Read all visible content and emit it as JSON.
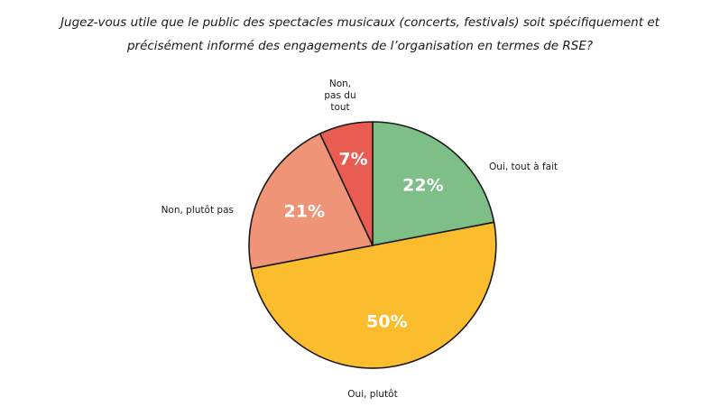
{
  "chart_data": {
    "type": "pie",
    "title_lines": [
      "Jugez-vous utile que le public des spectacles musicaux (concerts, festivals) soit spécifiquement et",
      "précisément informé des engagements de l’organisation en termes de RSE?"
    ],
    "slices": [
      {
        "label": "Oui, tout à fait",
        "label_lines": [
          "Oui, tout à fait"
        ],
        "value": 22,
        "value_label": "22%",
        "color": "#7dbf86"
      },
      {
        "label": "Oui, plutôt",
        "label_lines": [
          "Oui, plutôt"
        ],
        "value": 50,
        "value_label": "50%",
        "color": "#fbbc2e"
      },
      {
        "label": "Non, plutôt pas",
        "label_lines": [
          "Non, plutôt pas"
        ],
        "value": 21,
        "value_label": "21%",
        "color": "#f09478"
      },
      {
        "label": "Non, pas du tout",
        "label_lines": [
          "Non,",
          "pas du",
          "tout"
        ],
        "value": 7,
        "value_label": "7%",
        "color": "#e85c52"
      }
    ],
    "start": "12 o'clock",
    "direction": "clockwise",
    "outline_color": "#1a1a1a"
  }
}
